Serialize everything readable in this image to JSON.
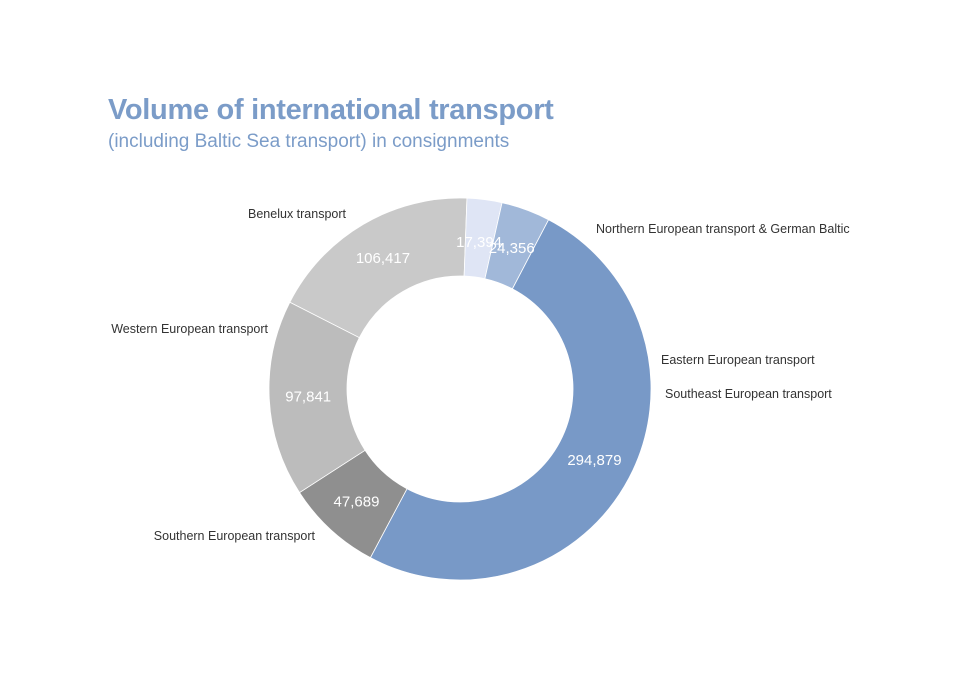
{
  "chart_data": {
    "type": "pie",
    "variant": "donut",
    "title": "Volume of international transport",
    "subtitle": "(including Baltic Sea transport) in consignments",
    "legend": "none",
    "slices": [
      {
        "label": "Northern European transport & German Baltic",
        "value": 106417,
        "value_text": "106,417",
        "color": "#c9c9c9"
      },
      {
        "label": "Eastern European transport",
        "value": 17394,
        "value_text": "17,394",
        "color": "#dfe5f5"
      },
      {
        "label": "Southeast European transport",
        "value": 24356,
        "value_text": "24,356",
        "color": "#a1b8d9"
      },
      {
        "label": "Southern European transport",
        "value": 294879,
        "value_text": "294,879",
        "color": "#7899c7"
      },
      {
        "label": "Western European transport",
        "value": 47689,
        "value_text": "47,689",
        "color": "#8f8f8f"
      },
      {
        "label": "Benelux transport",
        "value": 97841,
        "value_text": "97,841",
        "color": "#bcbcbc"
      }
    ]
  }
}
